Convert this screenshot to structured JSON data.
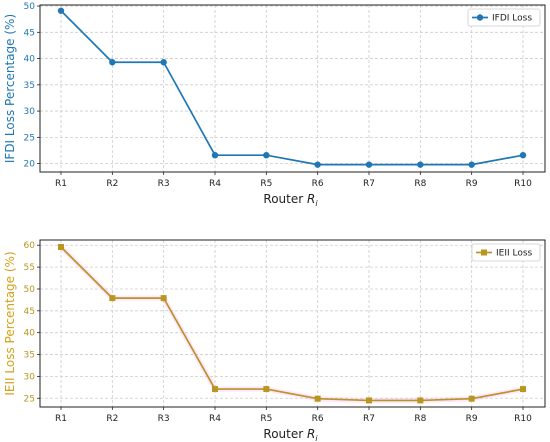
{
  "chart_data": [
    {
      "type": "line",
      "categories": [
        "R1",
        "R2",
        "R3",
        "R4",
        "R5",
        "R6",
        "R7",
        "R8",
        "R9",
        "R10"
      ],
      "series": [
        {
          "name": "IFDI Loss",
          "values": [
            49.1,
            39.3,
            39.3,
            21.6,
            21.6,
            19.8,
            19.8,
            19.8,
            19.8,
            21.6
          ]
        }
      ],
      "xlabel": "Router",
      "xlabel_sub": "i",
      "ylabel": "IFDI Loss Percentage (%)",
      "ylim": [
        18.4,
        50.2
      ],
      "yticks": [
        20,
        25,
        30,
        35,
        40,
        45,
        50
      ],
      "grid": true,
      "legend_position": "top-right",
      "color": "#1f77b4",
      "ylabel_color": "#1f77b4",
      "ytick_color": "#1f77b4",
      "marker": "circle"
    },
    {
      "type": "line",
      "categories": [
        "R1",
        "R2",
        "R3",
        "R4",
        "R5",
        "R6",
        "R7",
        "R8",
        "R9",
        "R10"
      ],
      "series": [
        {
          "name": "IEII Loss",
          "values": [
            59.6,
            47.9,
            47.9,
            27.1,
            27.1,
            24.9,
            24.5,
            24.5,
            24.9,
            27.1
          ]
        }
      ],
      "xlabel": "Router",
      "xlabel_sub": "i",
      "ylabel": "IEII Loss Percentage (%)",
      "ylim": [
        23.0,
        61.2
      ],
      "yticks": [
        25,
        30,
        35,
        40,
        45,
        50,
        55,
        60
      ],
      "grid": true,
      "legend_position": "top-right",
      "color": "#b8961f",
      "ylabel_color": "#d4a017",
      "ytick_color": "#b8961f",
      "glow_color": "#ff99ff",
      "marker": "square"
    }
  ]
}
